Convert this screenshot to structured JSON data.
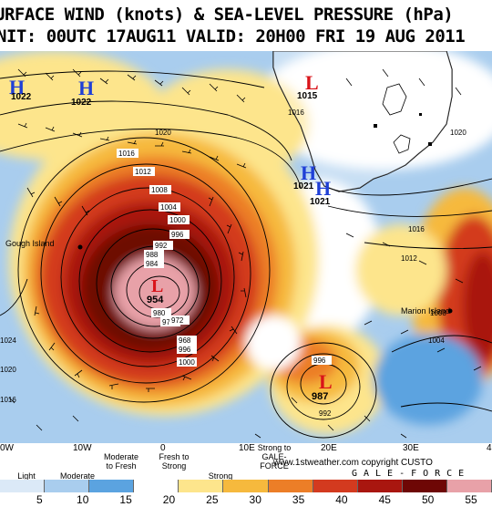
{
  "title_line1": "URFACE WIND (knots) & SEA-LEVEL PRESSURE (hPa)",
  "title_line2": "NIT: 00UTC 17AUG11  VALID: 20H00 FRI 19 AUG 2011",
  "longitude_labels": [
    "0W",
    "10W",
    "0",
    "10E",
    "20E",
    "30E",
    "4"
  ],
  "wind_categories": [
    {
      "label": "Light"
    },
    {
      "label": "Moderate"
    },
    {
      "label": "Moderate to Fresh"
    },
    {
      "label": "Fresh to Strong"
    },
    {
      "label": "Strong"
    },
    {
      "label": "Strong to GALE-FORCE"
    }
  ],
  "credit": "www.1stweather.com copyright CUSTO",
  "gale_label": "GALE-FORCE",
  "colorbar": {
    "ticks": [
      "5",
      "10",
      "15",
      "20",
      "25",
      "30",
      "35",
      "40",
      "45",
      "50",
      "55"
    ],
    "colors": [
      "#dbe9f7",
      "#a9cdee",
      "#5ba3e0",
      "#ffffff",
      "#fde58c",
      "#f6b93d",
      "#ec7e27",
      "#d33a1f",
      "#a9160f",
      "#6e0705",
      "#e8a1a8"
    ]
  },
  "pressure_centers": [
    {
      "type": "H",
      "value": "1022",
      "color": "#1f3fd6"
    },
    {
      "type": "H",
      "value": "1022",
      "color": "#1f3fd6"
    },
    {
      "type": "L",
      "value": "1015",
      "color": "#d9141a"
    },
    {
      "type": "H",
      "value": "1021",
      "color": "#1f3fd6"
    },
    {
      "type": "H",
      "value": "1021",
      "color": "#1f3fd6"
    },
    {
      "type": "L",
      "value": "954",
      "color": "#d9141a"
    },
    {
      "type": "L",
      "value": "987",
      "color": "#d9141a"
    }
  ],
  "isobar_labels": [
    "1016",
    "1012",
    "1008",
    "1004",
    "1000",
    "996",
    "992",
    "988",
    "984",
    "980",
    "976",
    "972",
    "968",
    "1020",
    "1016",
    "1012",
    "1008",
    "1004",
    "996",
    "992",
    "1016",
    "1020",
    "1024",
    "1020",
    "1016",
    "1000",
    "996"
  ],
  "place_names": [
    "Gough Island",
    "Marion Island"
  ]
}
